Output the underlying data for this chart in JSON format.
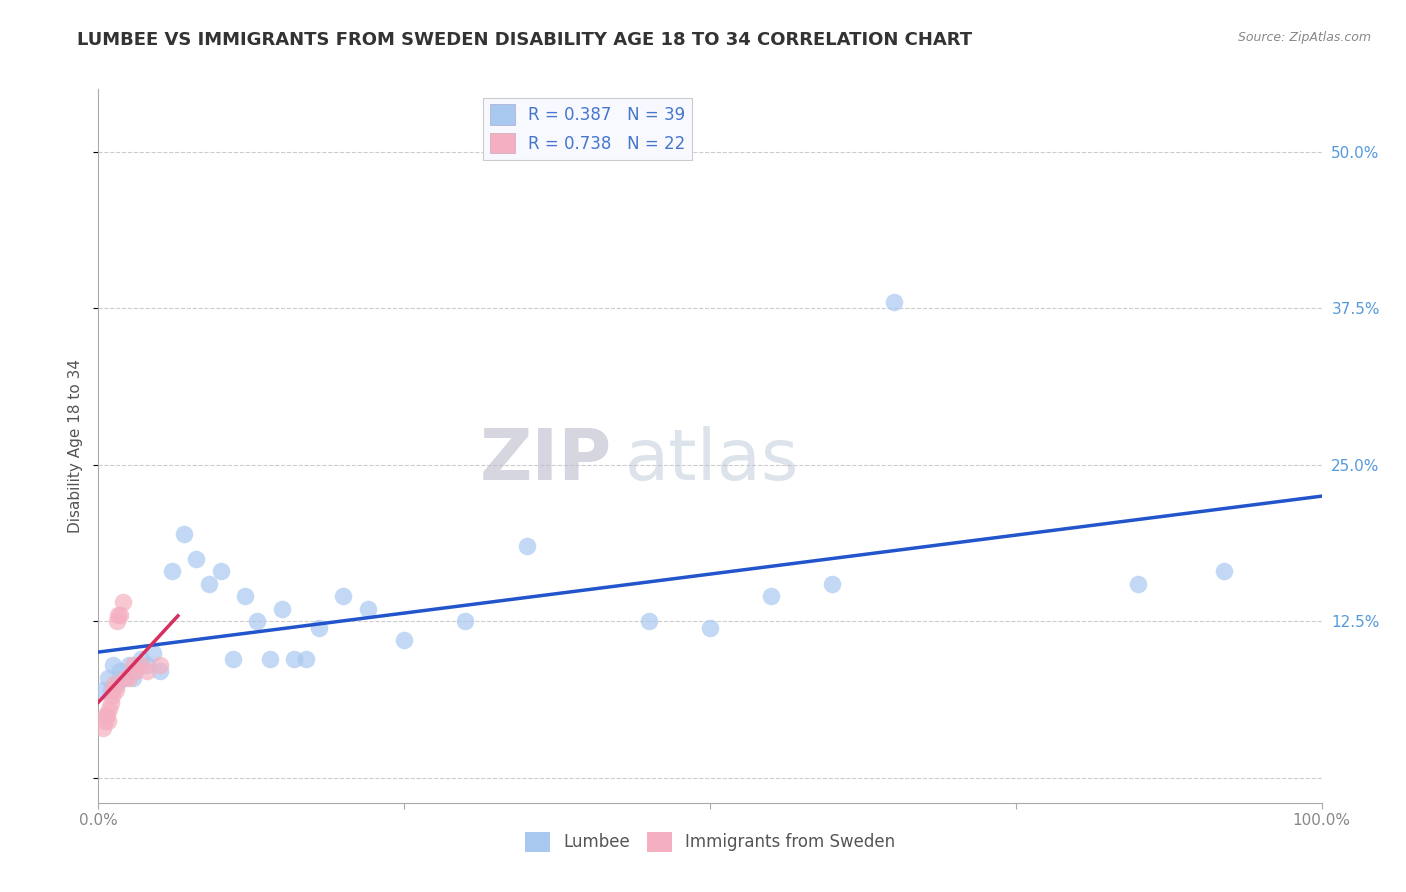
{
  "title": "LUMBEE VS IMMIGRANTS FROM SWEDEN DISABILITY AGE 18 TO 34 CORRELATION CHART",
  "source": "Source: ZipAtlas.com",
  "ylabel": "Disability Age 18 to 34",
  "watermark_zip": "ZIP",
  "watermark_atlas": "atlas",
  "legend_lumbee": "Lumbee",
  "legend_sweden": "Immigrants from Sweden",
  "R_lumbee": 0.387,
  "N_lumbee": 39,
  "R_sweden": 0.738,
  "N_sweden": 22,
  "xlim": [
    0.0,
    1.0
  ],
  "ylim": [
    -0.02,
    0.55
  ],
  "xticks": [
    0.0,
    0.25,
    0.5,
    0.75,
    1.0
  ],
  "xticklabels": [
    "0.0%",
    "",
    "",
    "",
    "100.0%"
  ],
  "yticks": [
    0.0,
    0.125,
    0.25,
    0.375,
    0.5
  ],
  "yticklabels_right": [
    "",
    "12.5%",
    "25.0%",
    "37.5%",
    "50.0%"
  ],
  "color_lumbee": "#a8c8f0",
  "color_sweden": "#f4b0c0",
  "line_color_lumbee": "#2255cc",
  "line_color_sweden": "#d63060",
  "background_color": "#ffffff",
  "lumbee_x": [
    0.004,
    0.008,
    0.01,
    0.012,
    0.015,
    0.018,
    0.02,
    0.025,
    0.028,
    0.03,
    0.035,
    0.04,
    0.045,
    0.05,
    0.06,
    0.07,
    0.08,
    0.09,
    0.1,
    0.11,
    0.12,
    0.13,
    0.14,
    0.15,
    0.16,
    0.17,
    0.18,
    0.2,
    0.22,
    0.25,
    0.3,
    0.35,
    0.45,
    0.5,
    0.55,
    0.6,
    0.65,
    0.85,
    0.92
  ],
  "lumbee_y": [
    0.07,
    0.08,
    0.07,
    0.09,
    0.075,
    0.085,
    0.08,
    0.09,
    0.08,
    0.085,
    0.095,
    0.09,
    0.1,
    0.085,
    0.165,
    0.195,
    0.175,
    0.155,
    0.165,
    0.095,
    0.145,
    0.125,
    0.095,
    0.135,
    0.095,
    0.095,
    0.12,
    0.145,
    0.135,
    0.11,
    0.125,
    0.185,
    0.125,
    0.12,
    0.145,
    0.155,
    0.38,
    0.155,
    0.165
  ],
  "sweden_x": [
    0.004,
    0.005,
    0.006,
    0.007,
    0.008,
    0.009,
    0.01,
    0.011,
    0.012,
    0.013,
    0.014,
    0.015,
    0.016,
    0.018,
    0.02,
    0.022,
    0.025,
    0.028,
    0.03,
    0.035,
    0.04,
    0.05
  ],
  "sweden_y": [
    0.04,
    0.045,
    0.05,
    0.05,
    0.045,
    0.055,
    0.06,
    0.065,
    0.07,
    0.075,
    0.07,
    0.125,
    0.13,
    0.13,
    0.14,
    0.08,
    0.08,
    0.09,
    0.085,
    0.09,
    0.085,
    0.09
  ],
  "grid_color": "#cccccc",
  "title_fontsize": 13,
  "axis_fontsize": 11,
  "tick_fontsize": 11,
  "legend_fontsize": 12,
  "watermark_fontsize_zip": 52,
  "watermark_fontsize_atlas": 52
}
